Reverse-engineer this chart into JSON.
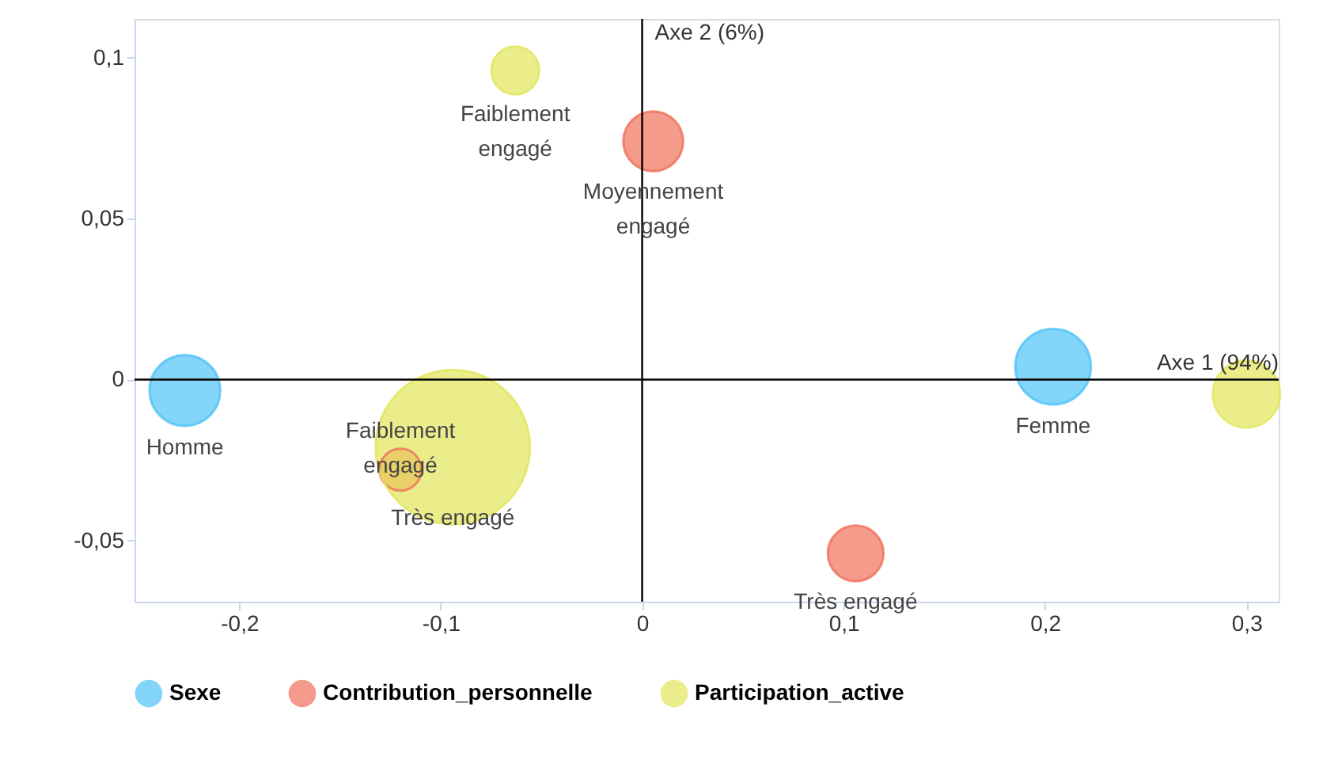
{
  "chart_data": {
    "type": "bubble",
    "series": [
      {
        "name": "Sexe",
        "color": "#4fc3f7",
        "x": [
          -0.227,
          0.204
        ],
        "values": [
          -0.0034,
          0.004
        ],
        "sizes": [
          0.21,
          0.24
        ]
      },
      {
        "name": "Contribution_personnelle",
        "color": "#f0705a",
        "x": [
          0.0055,
          0.106,
          -0.12
        ],
        "values": [
          0.074,
          -0.054,
          -0.028
        ],
        "sizes": [
          0.15,
          0.13,
          0.074
        ]
      },
      {
        "name": "Participation_active",
        "color": "#e2e65a",
        "x": [
          -0.063,
          -0.094,
          0.3
        ],
        "values": [
          0.096,
          -0.021,
          -0.0045
        ],
        "sizes": [
          0.096,
          1,
          0.19
        ]
      }
    ],
    "annotations": [
      {
        "text": "Homme",
        "x": -0.227,
        "y": -0.0034
      },
      {
        "text": "Femme",
        "x": 0.204,
        "y": 0.004
      },
      {
        "text": "Moyennement\nengagé",
        "x": 0.0055,
        "y": 0.074
      },
      {
        "text": "Très engagé",
        "x": 0.106,
        "y": -0.054
      },
      {
        "text": "Faiblement\nengagé",
        "x": -0.12,
        "y": -0.028
      },
      {
        "text": "Faiblement\nengagé",
        "x": -0.063,
        "y": 0.096
      },
      {
        "text": "Très engagé",
        "x": -0.094,
        "y": -0.021
      }
    ],
    "ref_lines": [
      {
        "axis": "y",
        "value": 0,
        "label": "Axe 1 (94%)",
        "color": "#000000"
      },
      {
        "axis": "x",
        "value": 0,
        "label": "Axe 2 (6%)",
        "color": "#000000"
      }
    ],
    "xlim": [
      -0.252,
      0.316
    ],
    "ylim": [
      -0.069,
      0.112
    ],
    "xticks": [
      {
        "value": -0.2,
        "label": "-0,2"
      },
      {
        "value": -0.1,
        "label": "-0,1"
      },
      0,
      {
        "value": 0.1,
        "label": "0,1"
      },
      {
        "value": 0.2,
        "label": "0,2"
      },
      {
        "value": 0.3,
        "label": "0,3"
      }
    ],
    "yticks": [
      {
        "value": -0.05,
        "label": "-0,05"
      },
      0,
      {
        "value": 0.05,
        "label": "0,05"
      },
      {
        "value": 0.1,
        "label": "0,1"
      }
    ],
    "grid": false,
    "legend": "bottom"
  }
}
